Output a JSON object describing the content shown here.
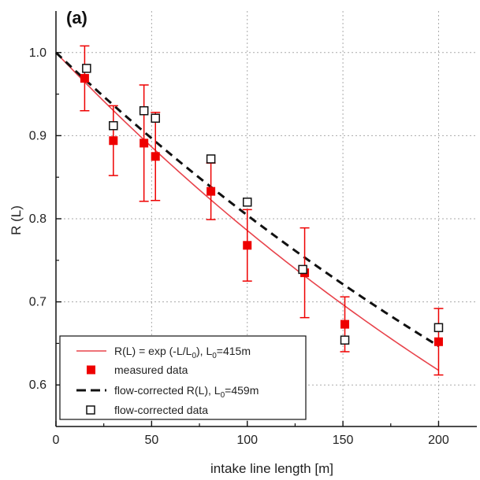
{
  "chart_data": {
    "type": "scatter",
    "panel_label": "(a)",
    "xlabel": "intake line length [m]",
    "ylabel": "R (L)",
    "xlim": [
      0,
      220
    ],
    "ylim": [
      0.55,
      1.05
    ],
    "xticks": [
      0,
      50,
      100,
      150,
      200
    ],
    "yticks": [
      0.6,
      0.7,
      0.8,
      0.9,
      1.0
    ],
    "xtick_labels": [
      "0",
      "50",
      "100",
      "150",
      "200"
    ],
    "ytick_labels": [
      "0.6",
      "0.7",
      "0.8",
      "0.9",
      "1.0"
    ],
    "grid": true,
    "legend_position": "bottom-left",
    "colors": {
      "fit_line": "#e8434b",
      "measured": "#ee0000",
      "flow_line": "#111111",
      "flow_data": "#111111",
      "grid": "#aaaaaa"
    },
    "series": [
      {
        "name": "measured data",
        "kind": "markers",
        "marker": "filled-square",
        "x": [
          15,
          30,
          46,
          52,
          81,
          100,
          130,
          151,
          200
        ],
        "y": [
          0.969,
          0.894,
          0.891,
          0.875,
          0.833,
          0.768,
          0.735,
          0.673,
          0.652
        ],
        "err": [
          0.039,
          0.042,
          0.07,
          0.053,
          0.034,
          0.043,
          0.054,
          0.033,
          0.04
        ]
      },
      {
        "name": "flow-corrected data",
        "kind": "markers",
        "marker": "open-square",
        "x": [
          16,
          30,
          46,
          52,
          81,
          100,
          129,
          151,
          200
        ],
        "y": [
          0.981,
          0.912,
          0.93,
          0.921,
          0.872,
          0.82,
          0.739,
          0.654,
          0.669
        ]
      },
      {
        "name": "R(L) = exp (-L/L0), L0=415m",
        "kind": "curve",
        "style": "solid",
        "L0": 415,
        "x_range": [
          0,
          200
        ]
      },
      {
        "name": "flow-corrected R(L), L0=459m",
        "kind": "curve",
        "style": "dashed",
        "L0": 459,
        "x_range": [
          0,
          200
        ]
      }
    ],
    "legend": [
      {
        "key": "fit",
        "main": "R(L) = exp (-L/L",
        "sub": "0",
        "mid": "), L",
        "sub2": "0",
        "tail": "=415m"
      },
      {
        "key": "measured",
        "main": "measured data"
      },
      {
        "key": "flowfit",
        "main": "flow-corrected R(L), L",
        "sub": "0",
        "tail": "=459m"
      },
      {
        "key": "flowdata",
        "main": "flow-corrected data"
      }
    ]
  }
}
